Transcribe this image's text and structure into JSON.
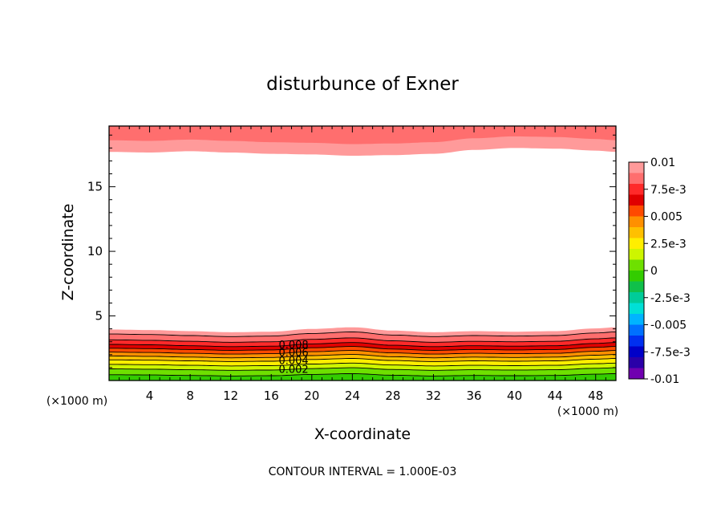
{
  "chart_data": {
    "type": "contour",
    "title": "disturbunce of Exner",
    "xlabel": "X-coordinate",
    "ylabel": "Z-coordinate",
    "x_unit_left": "(×1000 m)",
    "x_unit_right": "(×1000 m)",
    "footer": "CONTOUR INTERVAL = 1.000E-03",
    "xlim": [
      0,
      50
    ],
    "ylim": [
      0,
      19.7
    ],
    "x_ticks": [
      4,
      8,
      12,
      16,
      20,
      24,
      28,
      32,
      36,
      40,
      44,
      48
    ],
    "x_tick_labels": [
      "4",
      "8",
      "12",
      "16",
      "20",
      "24",
      "28",
      "32",
      "36",
      "40",
      "44",
      "48"
    ],
    "y_ticks": [
      5,
      10,
      15
    ],
    "y_tick_labels": [
      "5",
      "10",
      "15"
    ],
    "contour_interval": 0.001,
    "colorbar": {
      "labels": [
        "0.01",
        "7.5e-3",
        "0.005",
        "2.5e-3",
        "0",
        "-2.5e-3",
        "-0.005",
        "-7.5e-3",
        "-0.01"
      ],
      "levels": [
        0.01,
        0.0075,
        0.005,
        0.0025,
        0,
        -0.0025,
        -0.005,
        -0.0075,
        -0.01
      ],
      "colors": [
        "#ff9a9a",
        "#ff6e6e",
        "#ff2a2a",
        "#e00000",
        "#ff4a00",
        "#ff9000",
        "#ffc000",
        "#ffee00",
        "#cdf500",
        "#6ee000",
        "#33cc00",
        "#10c04a",
        "#00cc99",
        "#00e0d6",
        "#00b4ff",
        "#0070ff",
        "#0030f0",
        "#0000c8",
        "#2a00a8",
        "#7000b0"
      ]
    },
    "bottom_band": {
      "levels": [
        0,
        0.001,
        0.002,
        0.003,
        0.004,
        0.005,
        0.006,
        0.007,
        0.008,
        0.009,
        0.01
      ],
      "base_heights_km": [
        0,
        0.45,
        0.9,
        1.25,
        1.6,
        1.9,
        2.2,
        2.5,
        2.8,
        3.15,
        3.6
      ],
      "colors": [
        "#33cc00",
        "#6ee000",
        "#cdf500",
        "#ffee00",
        "#ffc000",
        "#ff9000",
        "#ff4a00",
        "#e00000",
        "#ff2a2a",
        "#ff6e6e",
        "#ff9a9a"
      ],
      "labels": [
        "0.002",
        "0.004",
        "0.006",
        "0.008"
      ],
      "label_levels": [
        0.002,
        0.004,
        0.006,
        0.008
      ],
      "label_x": 18.2
    },
    "top_band": {
      "levels": [
        0.009,
        0.01
      ],
      "base_heights_km": [
        18.5,
        17.6
      ],
      "colors": [
        "#ff6e6e",
        "#ff9a9a"
      ]
    },
    "terrain_wave": {
      "x": [
        0,
        4,
        8,
        12,
        16,
        20,
        24,
        28,
        32,
        36,
        40,
        44,
        48,
        50
      ],
      "dz": [
        0.0,
        -0.05,
        -0.15,
        -0.25,
        -0.2,
        0.05,
        0.2,
        -0.1,
        -0.25,
        -0.15,
        -0.2,
        -0.15,
        0.1,
        0.2
      ]
    },
    "top_wave": {
      "x": [
        0,
        4,
        8,
        12,
        16,
        20,
        24,
        28,
        32,
        36,
        40,
        44,
        48,
        50
      ],
      "dz": [
        0.1,
        0.05,
        0.15,
        0.05,
        -0.05,
        -0.1,
        -0.2,
        -0.15,
        -0.05,
        0.25,
        0.4,
        0.35,
        0.2,
        0.1
      ]
    },
    "grid": false
  }
}
